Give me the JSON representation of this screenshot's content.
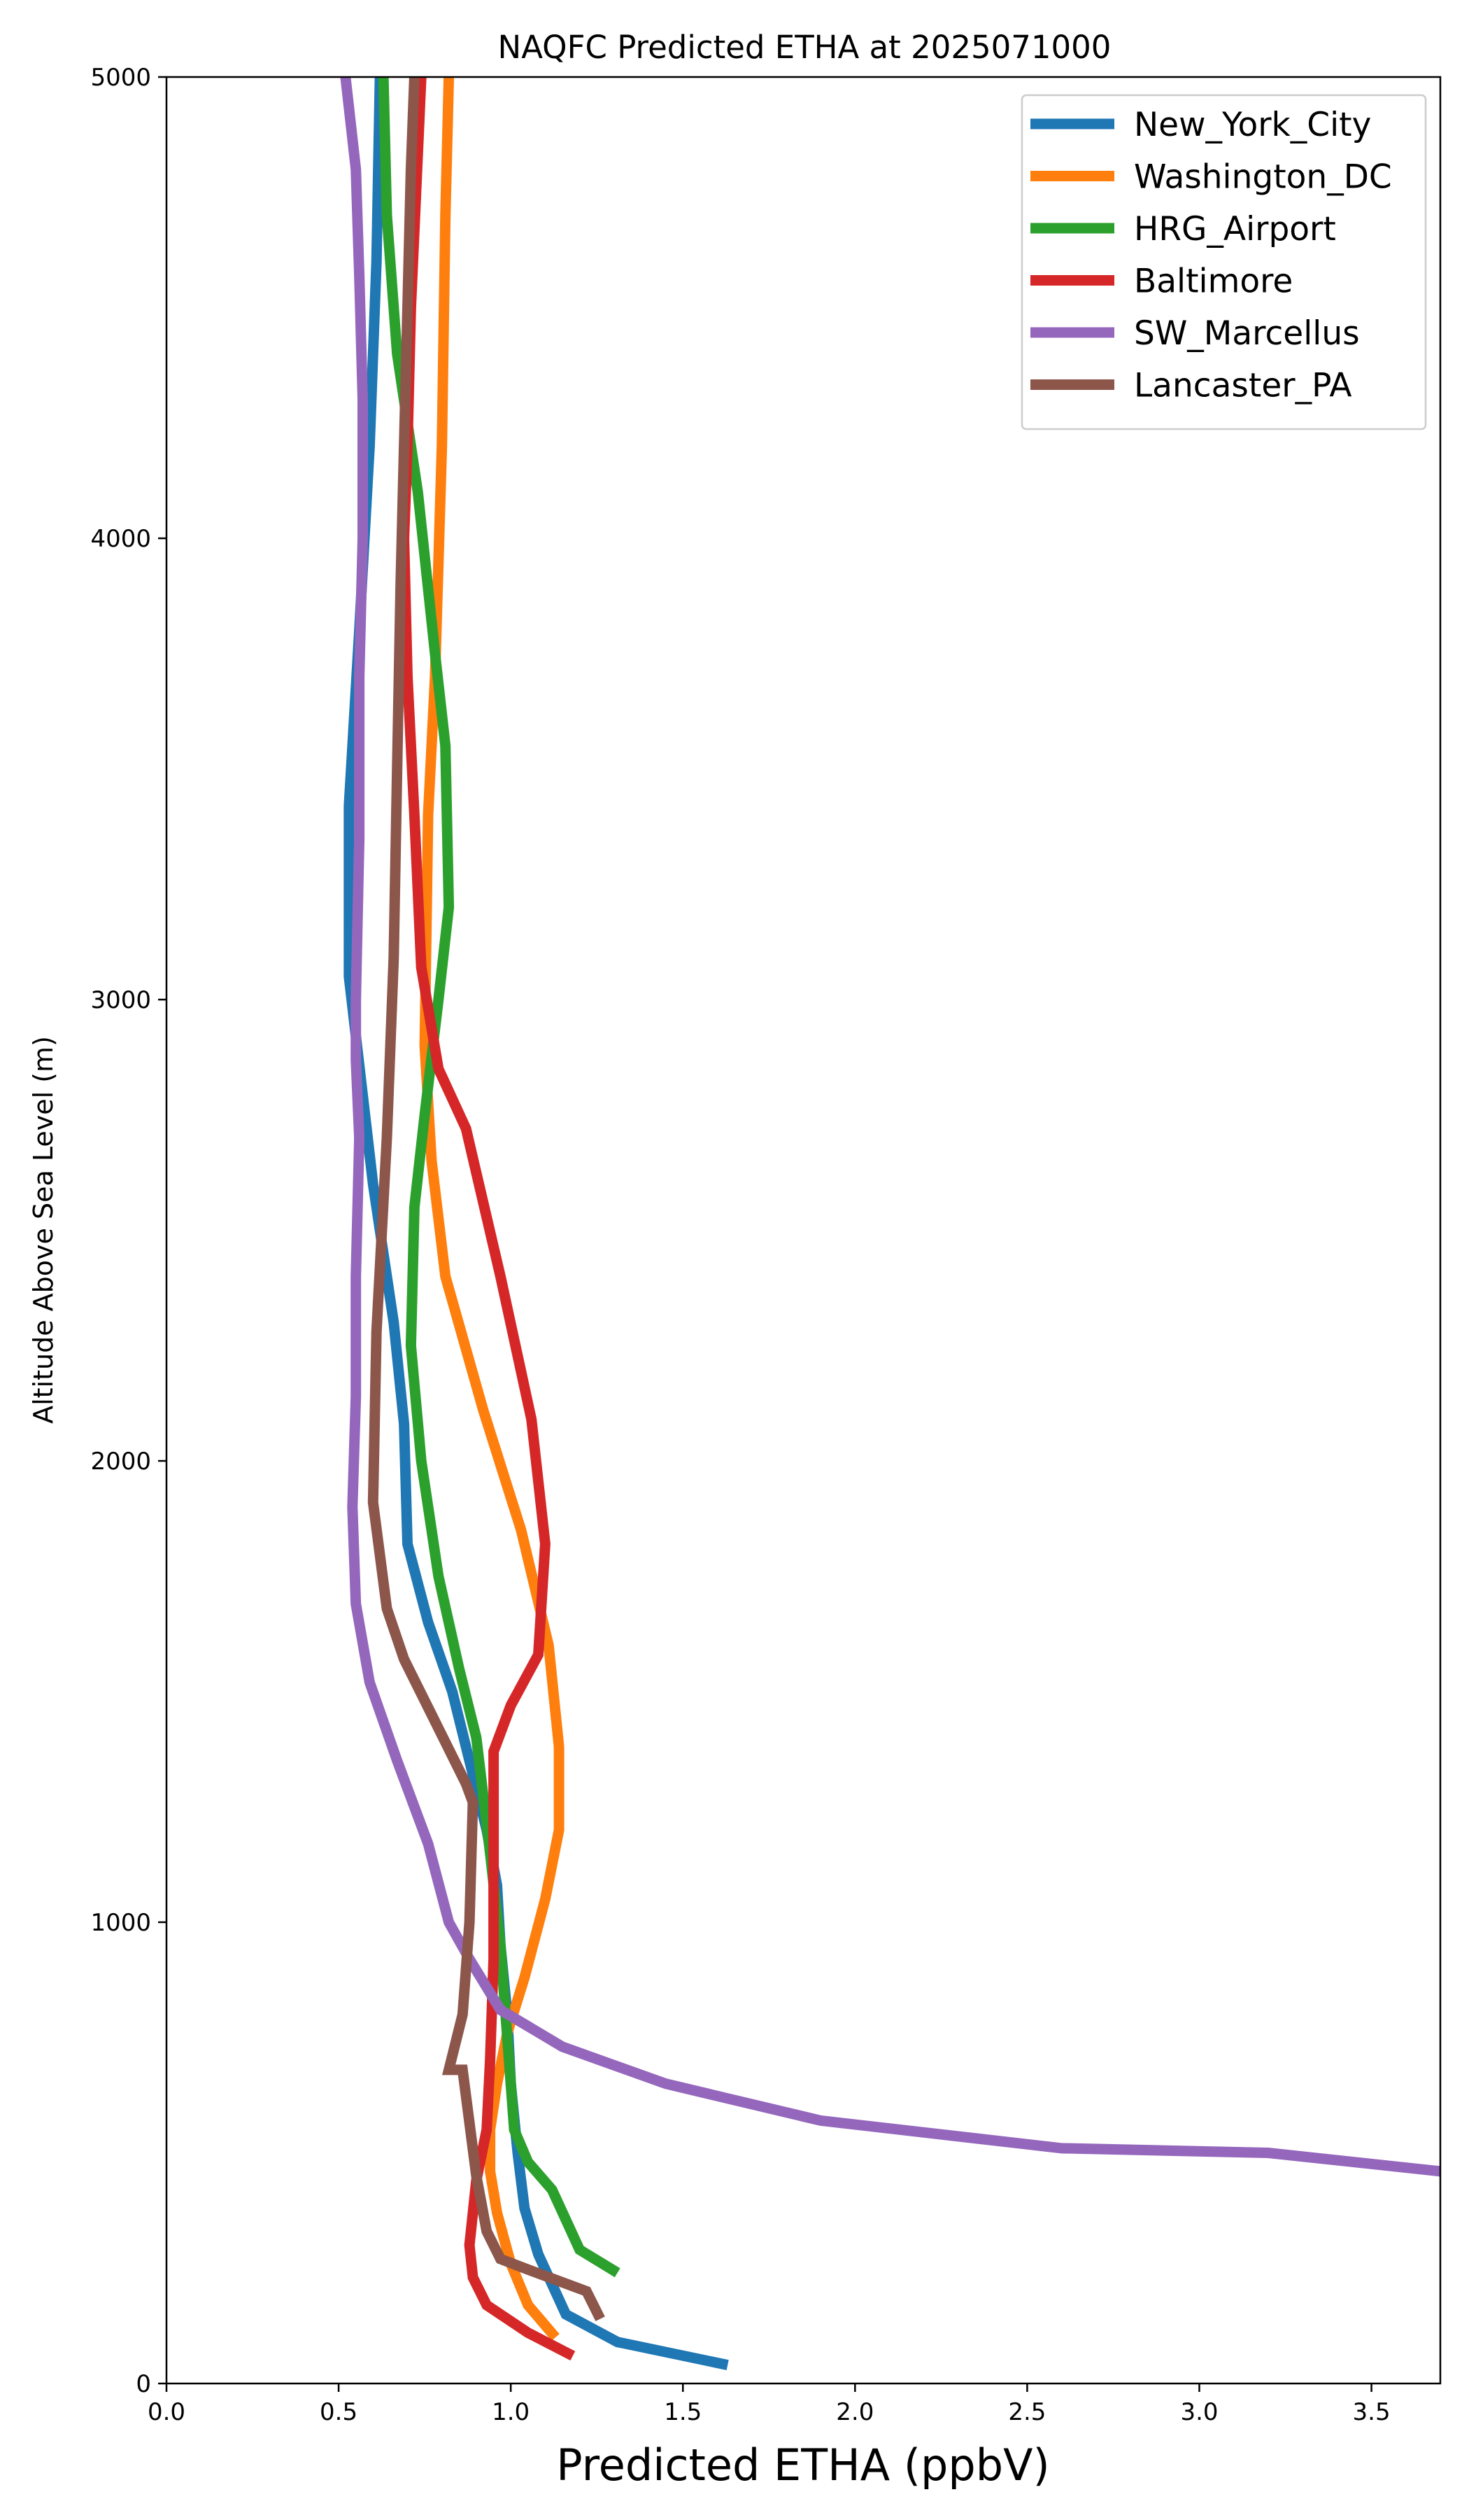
{
  "chart_data": {
    "type": "line",
    "title": "NAQFC Predicted ETHA at 2025071000",
    "xlabel": "Predicted ETHA (ppbV)",
    "ylabel": "Altitude Above Sea Level (m)",
    "xlim": [
      0,
      3.7
    ],
    "ylim": [
      0,
      5000
    ],
    "xticks": [
      0.0,
      0.5,
      1.0,
      1.5,
      2.0,
      2.5,
      3.0,
      3.5
    ],
    "xtick_labels": [
      "0.0",
      "0.5",
      "1.0",
      "1.5",
      "2.0",
      "2.5",
      "3.0",
      "3.5"
    ],
    "yticks": [
      0,
      1000,
      2000,
      3000,
      4000,
      5000
    ],
    "ytick_labels": [
      "0",
      "1000",
      "2000",
      "3000",
      "4000",
      "5000"
    ],
    "grid": false,
    "legend_position": "top-right",
    "series": [
      {
        "name": "New_York_City",
        "color": "#1f77b4",
        "x": [
          1.63,
          1.31,
          1.16,
          1.08,
          1.04,
          1.02,
          1.0,
          0.99,
          0.97,
          0.96,
          0.93,
          0.88,
          0.83,
          0.76,
          0.7,
          0.69,
          0.66,
          0.6,
          0.53,
          0.53,
          0.56,
          0.59,
          0.61,
          0.62
        ],
        "y": [
          40,
          90,
          150,
          280,
          380,
          500,
          650,
          800,
          950,
          1080,
          1200,
          1350,
          1500,
          1650,
          1820,
          2080,
          2300,
          2600,
          3050,
          3420,
          3800,
          4200,
          4600,
          5000
        ]
      },
      {
        "name": "Washington_DC",
        "color": "#ff7f0e",
        "x": [
          1.13,
          1.05,
          1.0,
          0.96,
          0.94,
          0.94,
          0.96,
          0.99,
          1.04,
          1.1,
          1.14,
          1.14,
          1.11,
          1.03,
          0.92,
          0.81,
          0.77,
          0.75,
          0.76,
          0.78,
          0.8,
          0.81,
          0.82
        ],
        "y": [
          100,
          170,
          260,
          370,
          460,
          550,
          650,
          760,
          880,
          1050,
          1200,
          1380,
          1600,
          1850,
          2110,
          2400,
          2650,
          2900,
          3400,
          3700,
          4200,
          4700,
          5000
        ]
      },
      {
        "name": "HRG_Airport",
        "color": "#2ca02c",
        "x": [
          1.31,
          1.2,
          1.12,
          1.05,
          1.01,
          0.99,
          0.97,
          0.94,
          0.9,
          0.85,
          0.79,
          0.74,
          0.71,
          0.72,
          0.75,
          0.79,
          0.82,
          0.81,
          0.78,
          0.73,
          0.67,
          0.64,
          0.63
        ],
        "y": [
          240,
          290,
          420,
          480,
          550,
          750,
          950,
          1150,
          1400,
          1550,
          1750,
          2000,
          2250,
          2550,
          2750,
          3000,
          3200,
          3550,
          3750,
          4100,
          4400,
          4700,
          5000
        ]
      },
      {
        "name": "Baltimore",
        "color": "#d62728",
        "x": [
          1.18,
          1.05,
          0.93,
          0.89,
          0.88,
          0.9,
          0.93,
          0.94,
          0.95,
          0.95,
          0.95,
          1.0,
          1.08,
          1.1,
          1.06,
          0.97,
          0.87,
          0.79,
          0.74,
          0.72,
          0.7,
          0.69,
          0.7,
          0.71,
          0.74
        ],
        "y": [
          60,
          110,
          170,
          230,
          300,
          440,
          550,
          700,
          920,
          1150,
          1370,
          1470,
          1580,
          1820,
          2090,
          2400,
          2720,
          2850,
          3070,
          3400,
          3700,
          4000,
          4200,
          4500,
          5000
        ]
      },
      {
        "name": "SW_Marcellus",
        "color": "#9467bd",
        "x": [
          3.7,
          3.2,
          2.6,
          1.9,
          1.45,
          1.15,
          0.97,
          0.88,
          0.82,
          0.76,
          0.67,
          0.59,
          0.55,
          0.54,
          0.55,
          0.55,
          0.56,
          0.55,
          0.55,
          0.56,
          0.56,
          0.57,
          0.57,
          0.56,
          0.55,
          0.52
        ],
        "y": [
          460,
          500,
          510,
          570,
          650,
          730,
          810,
          920,
          1000,
          1170,
          1350,
          1520,
          1690,
          1900,
          2140,
          2400,
          2700,
          2870,
          3000,
          3350,
          3700,
          4000,
          4300,
          4570,
          4800,
          5000
        ]
      },
      {
        "name": "Lancaster_PA",
        "color": "#8c564b",
        "x": [
          1.26,
          1.22,
          1.04,
          0.97,
          0.93,
          0.9,
          0.86,
          0.82,
          0.86,
          0.88,
          0.89,
          0.87,
          0.77,
          0.69,
          0.64,
          0.6,
          0.61,
          0.64,
          0.66,
          0.67,
          0.68,
          0.69,
          0.7,
          0.71,
          0.72
        ],
        "y": [
          140,
          200,
          250,
          270,
          330,
          450,
          680,
          680,
          800,
          1000,
          1260,
          1300,
          1450,
          1570,
          1680,
          1910,
          2280,
          2700,
          3090,
          3500,
          3900,
          4200,
          4500,
          4800,
          5000
        ]
      }
    ]
  }
}
